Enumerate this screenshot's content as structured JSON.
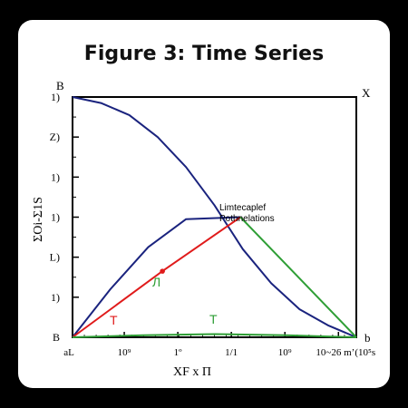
{
  "chart_data": {
    "type": "line",
    "title": "Figure 3: Time Series",
    "xlabel": "XF x Π",
    "ylabel": "ΣOi-Σ1S",
    "x_tick_labels": [
      "aL",
      "10⁹",
      "1º",
      "1/1",
      "10⁹",
      "10~26 mʼ(10⁵s"
    ],
    "y_tick_labels": [
      "B",
      "1)",
      "L)",
      "1)",
      "1)",
      "Z)",
      "1)"
    ],
    "corner_labels": {
      "top_left": "B",
      "top_right": "X",
      "bottom_right": "b"
    },
    "annotation": {
      "line1": "Limtecaplef",
      "line2": "Pothnelations"
    },
    "inline_labels": {
      "red_series": "T",
      "red_marker": "Л",
      "green_series": "T"
    },
    "colors": {
      "navy": "#1a237e",
      "red": "#e01b1b",
      "green": "#2e9e35"
    },
    "ylim": [
      0,
      6
    ],
    "xlim": [
      0,
      6
    ],
    "grid": false,
    "series": [
      {
        "color": "#1a237e",
        "x": [
          0,
          0.6,
          1.2,
          1.8,
          2.4,
          3.0,
          3.6,
          4.2,
          4.8,
          5.4,
          6.0
        ],
        "y": [
          6.0,
          5.85,
          5.55,
          5.0,
          4.25,
          3.3,
          2.2,
          1.35,
          0.7,
          0.3,
          0.0
        ]
      },
      {
        "color": "#1a237e",
        "x": [
          0,
          0.8,
          1.6,
          2.4,
          3.55
        ],
        "y": [
          0,
          1.2,
          2.25,
          2.95,
          3.0
        ]
      },
      {
        "color": "#e01b1b",
        "x": [
          0,
          1.9,
          3.55
        ],
        "y": [
          0,
          1.65,
          3.0
        ]
      },
      {
        "color": "#2e9e35",
        "x": [
          3.55,
          6.0
        ],
        "y": [
          3.0,
          0.0
        ]
      },
      {
        "color": "#2e9e35",
        "x": [
          0,
          1.5,
          3.0,
          4.5,
          6.0
        ],
        "y": [
          0,
          0.05,
          0.08,
          0.05,
          0.0
        ]
      }
    ],
    "markers": [
      {
        "x": 1.9,
        "y": 1.65,
        "color": "#e01b1b"
      }
    ]
  }
}
